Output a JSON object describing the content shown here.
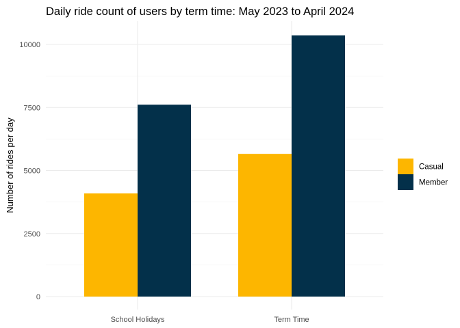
{
  "chart_data": {
    "type": "bar",
    "title": "Daily ride count of users by term time: May 2023 to April 2024",
    "xlabel": "",
    "ylabel": "Number of rides per day",
    "categories": [
      "School Holidays",
      "Term Time"
    ],
    "series": [
      {
        "name": "Casual",
        "color": "#FDB600",
        "values": [
          4090,
          5660
        ]
      },
      {
        "name": "Member",
        "color": "#03304A",
        "values": [
          7610,
          10360
        ]
      }
    ],
    "ylim": [
      0,
      10900
    ],
    "yticks": [
      0,
      2500,
      5000,
      7500,
      10000
    ],
    "ytick_labels": [
      "0",
      "2500",
      "5000",
      "7500",
      "10000"
    ],
    "grid": true,
    "legend_position": "right"
  }
}
